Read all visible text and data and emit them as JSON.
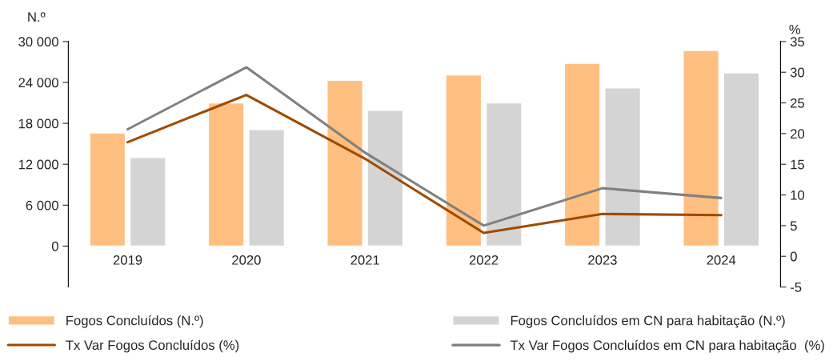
{
  "chart_data": {
    "type": "bar",
    "categories": [
      "2019",
      "2020",
      "2021",
      "2022",
      "2023",
      "2024"
    ],
    "ylabel": "N.º",
    "y2label": "%",
    "ylim": [
      -6000,
      30000
    ],
    "yticks": [
      {
        "value": 0,
        "label": "0"
      },
      {
        "value": 6000,
        "label": "6 000"
      },
      {
        "value": 12000,
        "label": "12 000"
      },
      {
        "value": 18000,
        "label": "18 000"
      },
      {
        "value": 24000,
        "label": "24 000"
      },
      {
        "value": 30000,
        "label": "30 000"
      }
    ],
    "y2lim": [
      -5,
      35
    ],
    "y2ticks": [
      -5,
      0,
      5,
      10,
      15,
      20,
      25,
      30,
      35
    ],
    "series": [
      {
        "name": "Fogos Concluídos (N.º)",
        "color": "#ffbf80",
        "values": [
          16600,
          21000,
          24300,
          25100,
          26800,
          28700
        ]
      },
      {
        "name": "Fogos Concluídos em CN para habitação (N.º)",
        "color": "#d4d4d4",
        "values": [
          13000,
          17100,
          19900,
          21000,
          23200,
          25400
        ]
      },
      {
        "name": "Tx Var Fogos Concluídos (%)",
        "type": "line",
        "axis": "y2",
        "color": "#a04a00",
        "values": [
          18.6,
          26.3,
          15.9,
          3.8,
          6.9,
          6.7
        ]
      },
      {
        "name": "Tx Var Fogos Concluídos em CN para habitação  (%)",
        "type": "line",
        "axis": "y2",
        "color": "#808080",
        "values": [
          20.7,
          30.8,
          16.9,
          5.0,
          11.1,
          9.5
        ]
      }
    ],
    "legend": "bottom",
    "grid": false
  }
}
